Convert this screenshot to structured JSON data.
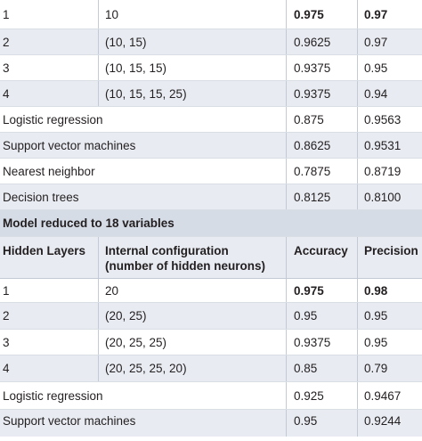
{
  "top_rows": [
    {
      "layers": "1",
      "config": "10",
      "accuracy": "0.975",
      "precision": "0.97",
      "bold": true
    },
    {
      "layers": "2",
      "config": "(10, 15)",
      "accuracy": "0.9625",
      "precision": "0.97",
      "bold": false
    },
    {
      "layers": "3",
      "config": "(10, 15, 15)",
      "accuracy": "0.9375",
      "precision": "0.95",
      "bold": false
    },
    {
      "layers": "4",
      "config": "(10, 15, 15, 25)",
      "accuracy": "0.9375",
      "precision": "0.94",
      "bold": false
    }
  ],
  "top_methods": [
    {
      "name": "Logistic regression",
      "accuracy": "0.875",
      "precision": "0.9563"
    },
    {
      "name": "Support vector machines",
      "accuracy": "0.8625",
      "precision": "0.9531"
    },
    {
      "name": "Nearest neighbor",
      "accuracy": "0.7875",
      "precision": "0.8719"
    },
    {
      "name": "Decision trees",
      "accuracy": "0.8125",
      "precision": "0.8100"
    }
  ],
  "section_title": "Model reduced to 18 variables",
  "header": {
    "layers": "Hidden Layers",
    "config_line1": "Internal configuration",
    "config_line2": "(number of hidden neurons)",
    "accuracy": "Accuracy",
    "precision": "Precision"
  },
  "bottom_rows": [
    {
      "layers": "1",
      "config": "20",
      "accuracy": "0.975",
      "precision": "0.98",
      "bold": true
    },
    {
      "layers": "2",
      "config": "(20, 25)",
      "accuracy": "0.95",
      "precision": "0.95",
      "bold": false
    },
    {
      "layers": "3",
      "config": "(20, 25, 25)",
      "accuracy": "0.9375",
      "precision": "0.95",
      "bold": false
    },
    {
      "layers": "4",
      "config": "(20, 25, 25, 20)",
      "accuracy": "0.85",
      "precision": "0.79",
      "bold": false
    }
  ],
  "bottom_methods": [
    {
      "name": "Logistic regression",
      "accuracy": "0.925",
      "precision": "0.9467"
    },
    {
      "name": "Support vector machines",
      "accuracy": "0.95",
      "precision": "0.9244"
    }
  ]
}
